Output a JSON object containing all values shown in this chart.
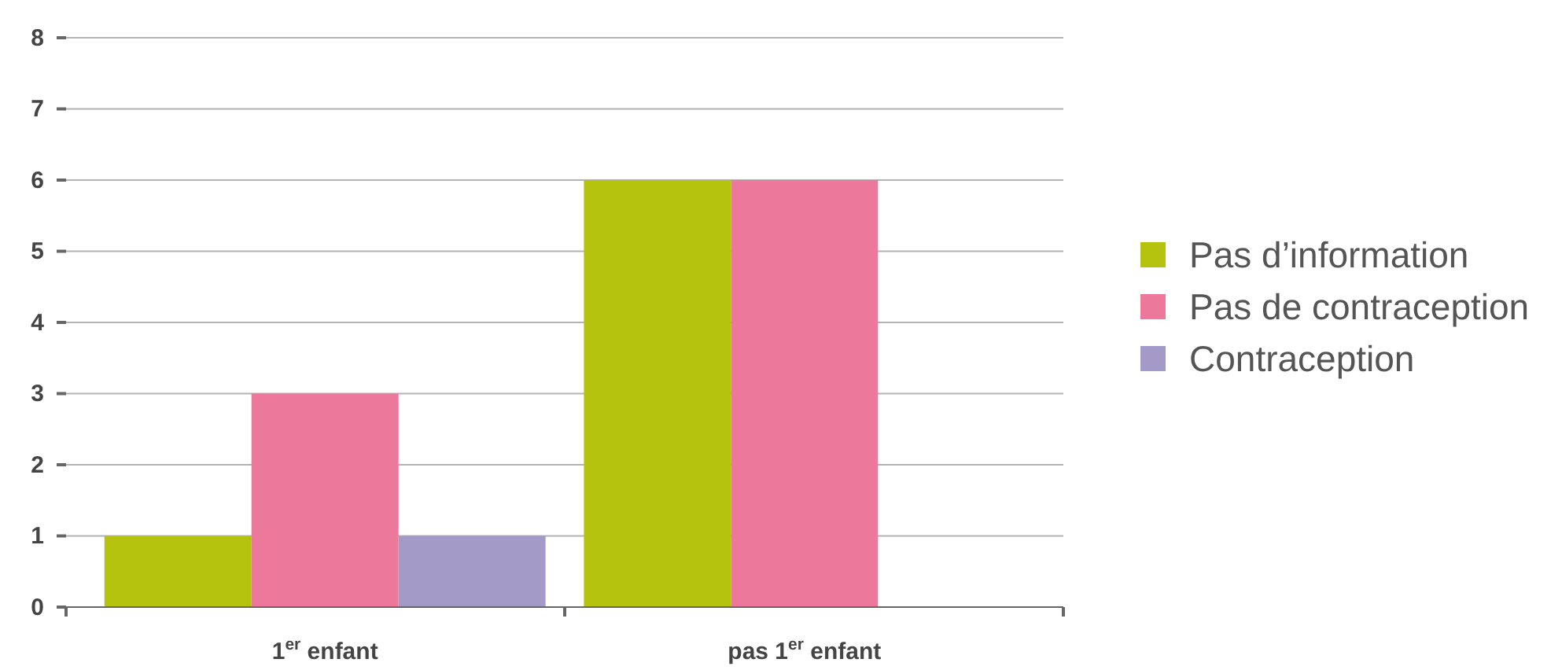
{
  "chart_data": {
    "type": "bar",
    "categories": [
      "1$^{er}$ enfant",
      "pas 1$^{er}$ enfant"
    ],
    "series": [
      {
        "name": "Pas d’information",
        "color": "#b5c30f",
        "values": [
          1,
          6
        ]
      },
      {
        "name": "Pas de contraception",
        "color": "#ec799b",
        "values": [
          3,
          6
        ]
      },
      {
        "name": "Contraception",
        "color": "#a39ac8",
        "values": [
          1,
          0
        ]
      }
    ],
    "ylim": [
      0,
      8
    ],
    "yticks": [
      0,
      1,
      2,
      3,
      4,
      5,
      6,
      7,
      8
    ],
    "grid": "y",
    "legend": "right"
  }
}
